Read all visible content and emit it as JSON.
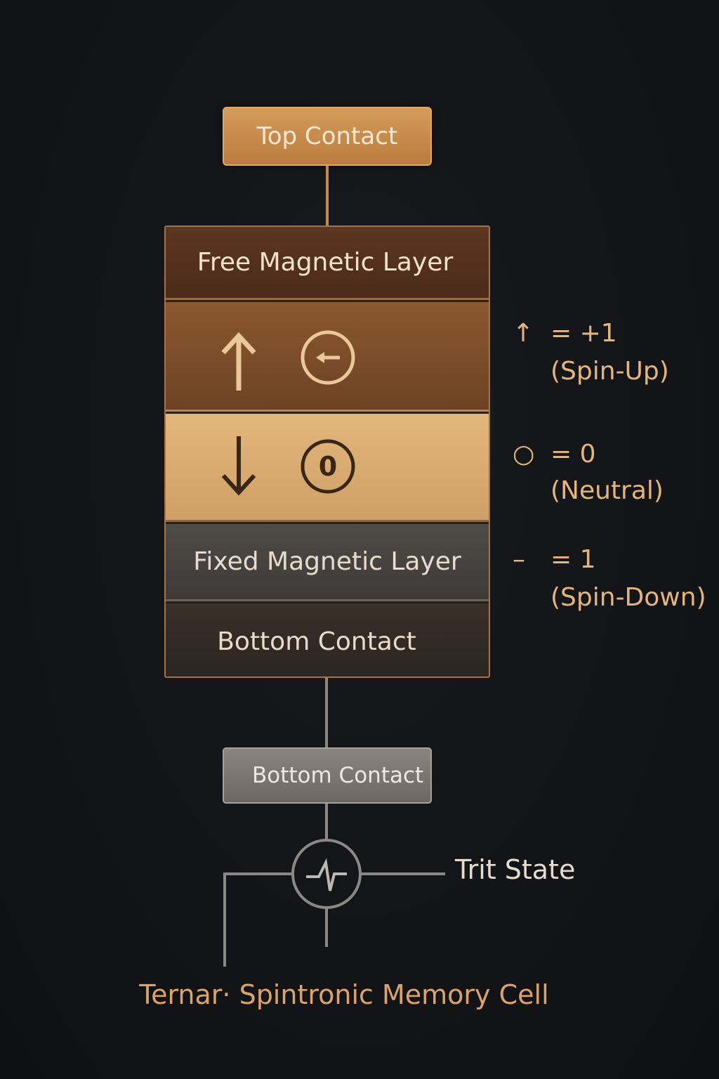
{
  "top_contact": {
    "label": "Top Contact"
  },
  "stack": {
    "free_layer": {
      "label": "Free Magnetic Layer"
    },
    "fixed_layer": {
      "label": "Fixed Magnetic Layer"
    },
    "bottom_layer": {
      "label": "Bottom Contact"
    }
  },
  "state_symbols": {
    "zero_label": "0"
  },
  "bottom_contact_box": {
    "label": "Bottom Contact"
  },
  "legend": {
    "plus_one": {
      "symbol": "↑",
      "equation": "= +1",
      "description": "(Spin-Up)"
    },
    "zero": {
      "symbol": "○",
      "equation": "= 0",
      "description": "(Neutral)"
    },
    "minus_one": {
      "symbol": "–",
      "equation": "= 1",
      "description": "(Spin-Down)"
    }
  },
  "trit_state": {
    "label": "Trit State"
  },
  "caption": "Ternar· Spintronic Memory Cell",
  "colors": {
    "accent": "#d59c5b",
    "legend": "#e6b57c",
    "background": "#111316"
  },
  "icons": [
    "arrow-up-icon",
    "circle-left-arrow-icon",
    "arrow-down-icon",
    "circle-zero-icon",
    "pulse-circle-icon"
  ]
}
